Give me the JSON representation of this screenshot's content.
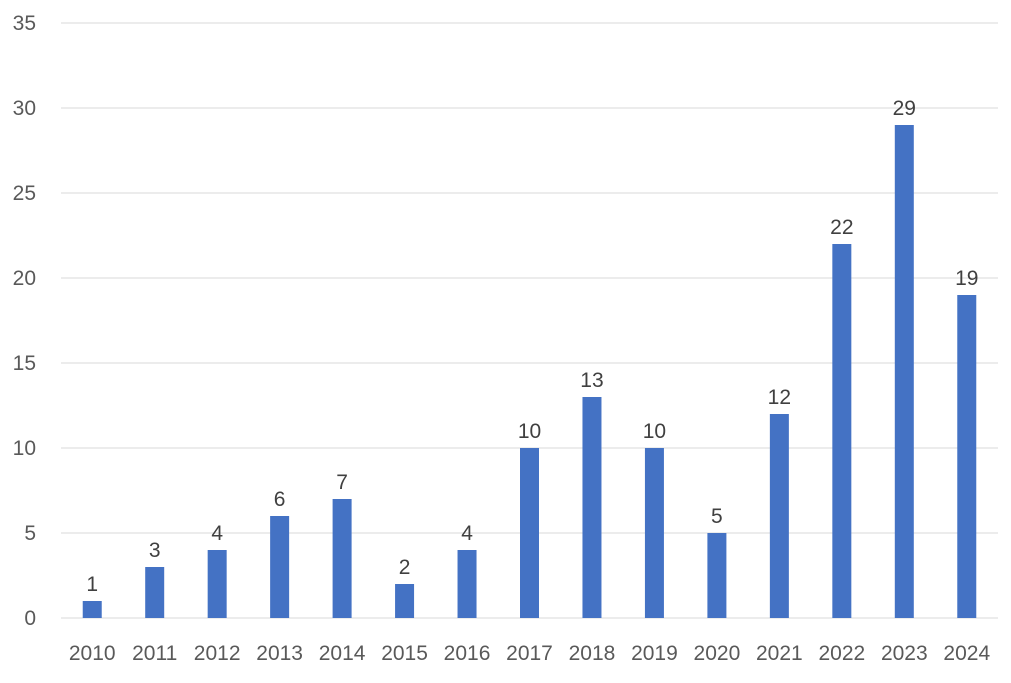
{
  "chart_data": {
    "type": "bar",
    "categories": [
      "2010",
      "2011",
      "2012",
      "2013",
      "2014",
      "2015",
      "2016",
      "2017",
      "2018",
      "2019",
      "2020",
      "2021",
      "2022",
      "2023",
      "2024"
    ],
    "values": [
      1,
      3,
      4,
      6,
      7,
      2,
      4,
      10,
      13,
      10,
      5,
      12,
      22,
      29,
      19
    ],
    "title": "",
    "xlabel": "",
    "ylabel": "",
    "ylim": [
      0,
      35
    ],
    "yticks": [
      0,
      5,
      10,
      15,
      20,
      25,
      30,
      35
    ],
    "grid": true,
    "legend": "none",
    "data_labels": true,
    "bar_color": "#4472c4"
  }
}
